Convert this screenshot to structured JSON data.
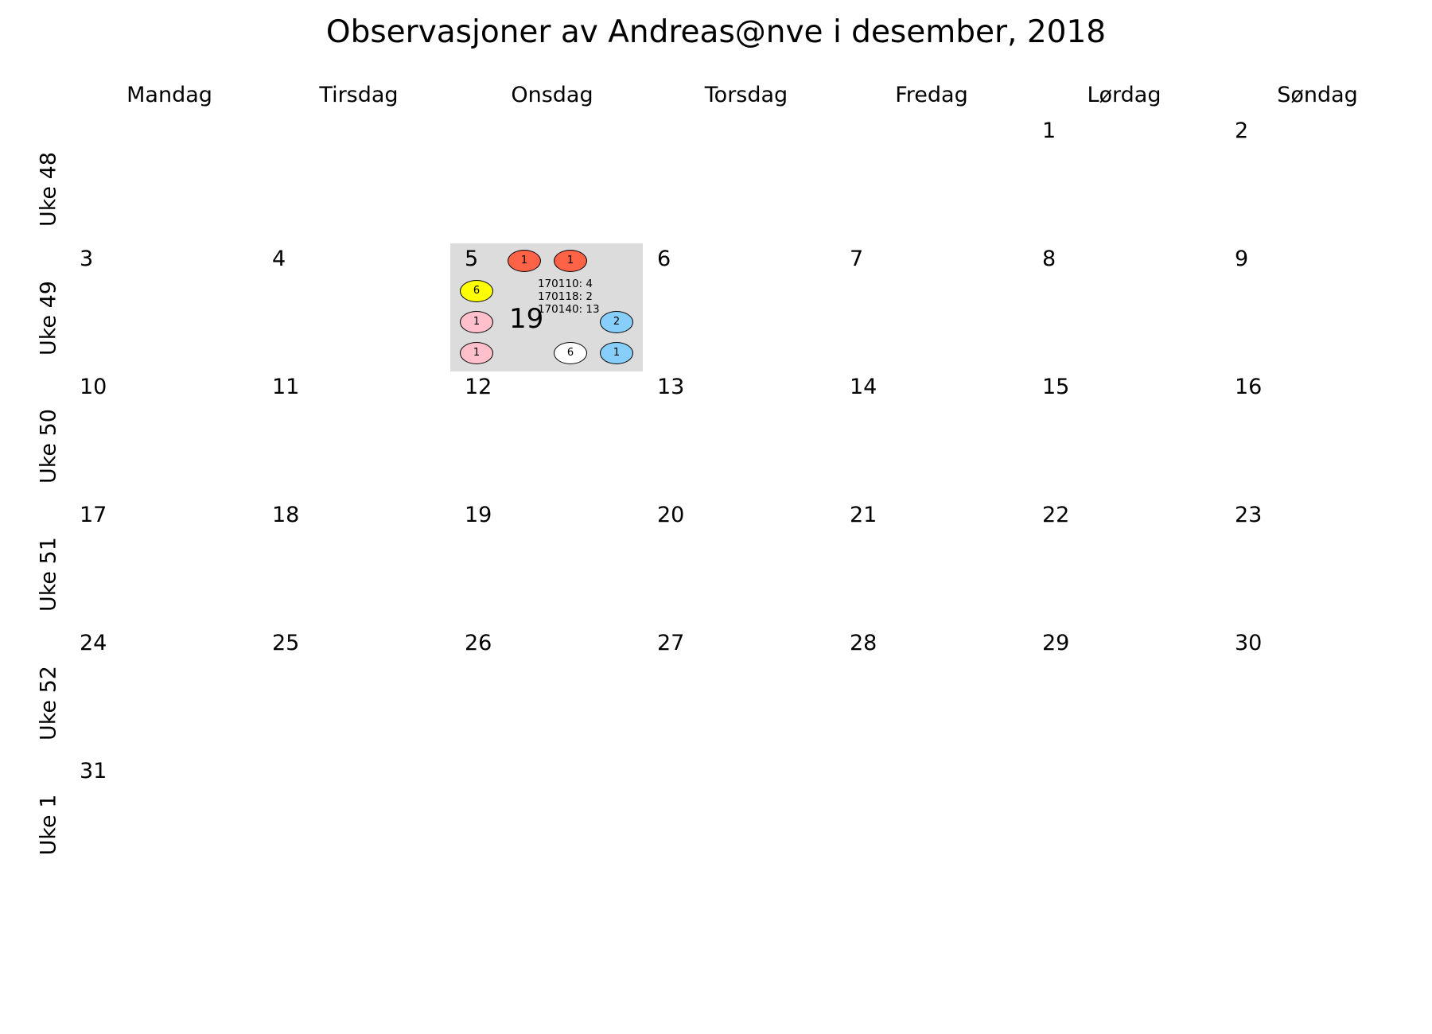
{
  "title": "Observasjoner av Andreas@nve i desember, 2018",
  "weekdays": [
    "Mandag",
    "Tirsdag",
    "Onsdag",
    "Torsdag",
    "Fredag",
    "Lørdag",
    "Søndag"
  ],
  "weeks": [
    "Uke 48",
    "Uke 49",
    "Uke 50",
    "Uke 51",
    "Uke 52",
    "Uke 1"
  ],
  "days": {
    "w48": [
      "1",
      "2"
    ],
    "w49": [
      "3",
      "4",
      "5",
      "6",
      "7",
      "8",
      "9"
    ],
    "w50": [
      "10",
      "11",
      "12",
      "13",
      "14",
      "15",
      "16"
    ],
    "w51": [
      "17",
      "18",
      "19",
      "20",
      "21",
      "22",
      "23"
    ],
    "w52": [
      "24",
      "25",
      "26",
      "27",
      "28",
      "29",
      "30"
    ],
    "w1": [
      "31"
    ]
  },
  "highlight": {
    "total": "19",
    "markers": [
      {
        "label": "1",
        "color": "#ff6347"
      },
      {
        "label": "1",
        "color": "#ff6347"
      },
      {
        "label": "6",
        "color": "#ffff00"
      },
      {
        "label": "1",
        "color": "#ffc0cb"
      },
      {
        "label": "2",
        "color": "#87cefa"
      },
      {
        "label": "1",
        "color": "#ffc0cb"
      },
      {
        "label": "6",
        "color": "#ffffff"
      },
      {
        "label": "1",
        "color": "#87cefa"
      }
    ],
    "registrations": [
      "170110: 4",
      "170118: 2",
      "170140: 13"
    ]
  }
}
